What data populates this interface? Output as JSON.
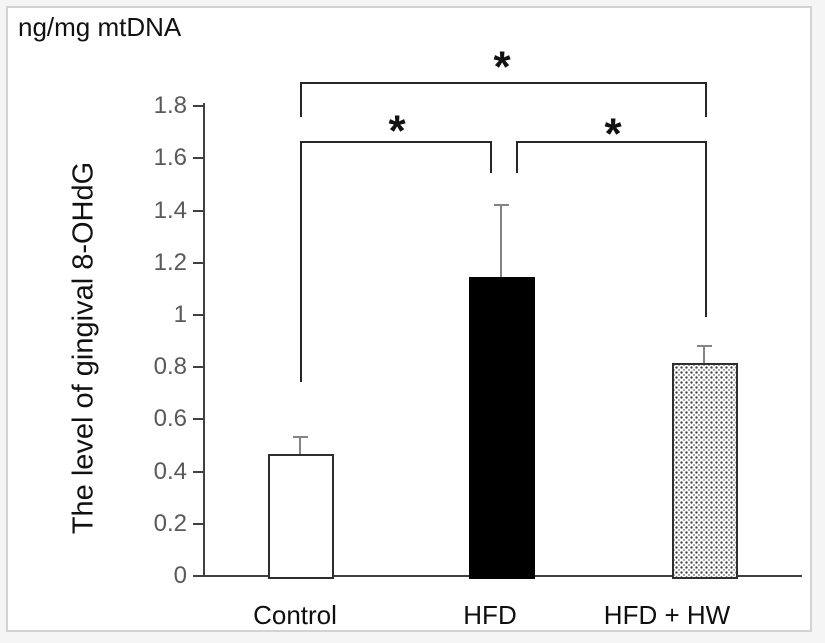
{
  "figure": {
    "unit_label": "ng/mg mtDNA",
    "y_axis_title": "The level of gingival 8-OHdG"
  },
  "chart_data": {
    "type": "bar",
    "title": "ng/mg mtDNA",
    "xlabel": "",
    "ylabel": "The level of gingival 8-OHdG",
    "categories": [
      "Control",
      "HFD",
      "HFD + HW"
    ],
    "values": [
      0.47,
      1.15,
      0.82
    ],
    "error_bars_plus": [
      0.07,
      0.28,
      0.07
    ],
    "bar_fills": [
      "white",
      "black",
      "stipple"
    ],
    "ylim": [
      0,
      1.8
    ],
    "ytick_labels": [
      "0",
      "0.2",
      "0.4",
      "0.6",
      "0.8",
      "1",
      "1.2",
      "1.4",
      "1.6",
      "1.8"
    ],
    "grid": false,
    "legend": "none",
    "significance_brackets": [
      {
        "pair": [
          "Control",
          "HFD + HW"
        ],
        "label": "*"
      },
      {
        "pair": [
          "Control",
          "HFD"
        ],
        "label": "*"
      },
      {
        "pair": [
          "HFD",
          "HFD + HW"
        ],
        "label": "*"
      }
    ]
  },
  "colors": {
    "page_background": "#f5f5f5",
    "panel_background": "#ffffff",
    "panel_border": "#d2d2d2",
    "axis_line": "#404040",
    "tick_label": "#595959",
    "bar_border": "#2e2e2e",
    "hfd_fill": "#000000",
    "error_bar": "#848484",
    "bracket_line": "#262626",
    "text": "#111111"
  }
}
